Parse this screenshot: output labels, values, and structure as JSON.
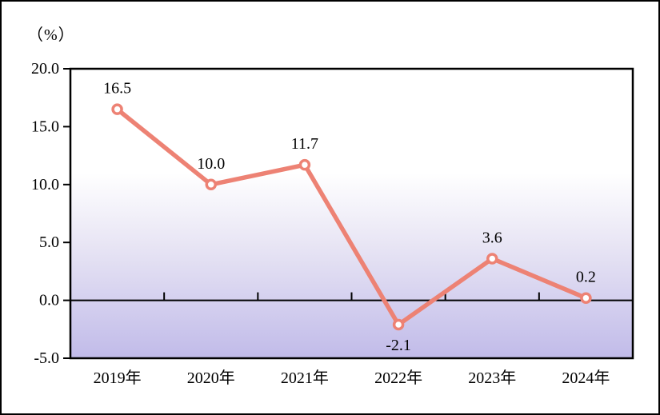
{
  "chart_data": {
    "type": "line",
    "title": "",
    "unit_label": "（%）",
    "categories": [
      "2019年",
      "2020年",
      "2021年",
      "2022年",
      "2023年",
      "2024年"
    ],
    "values": [
      16.5,
      10.0,
      11.7,
      -2.1,
      3.6,
      0.2
    ],
    "data_labels": [
      "16.5",
      "10.0",
      "11.7",
      "-2.1",
      "3.6",
      "0.2"
    ],
    "xlabel": "",
    "ylabel": "（%）",
    "ylim": [
      -5.0,
      20.0
    ],
    "ytick_step": 5.0,
    "yticks": [
      {
        "value": 20.0,
        "label": "20.0"
      },
      {
        "value": 15.0,
        "label": "15.0"
      },
      {
        "value": 10.0,
        "label": "10.0"
      },
      {
        "value": 5.0,
        "label": "5.0"
      },
      {
        "value": 0.0,
        "label": "0.0"
      },
      {
        "value": -5.0,
        "label": "-5.0"
      }
    ],
    "grid": false,
    "legend": "none",
    "colors": {
      "line": "#ED8274",
      "marker_fill": "#FFFFFF",
      "marker_stroke": "#ED8274",
      "axis": "#000000",
      "text": "#000000",
      "plot_bg_top": "#FFFFFF",
      "plot_bg_mid": "#E7E4F4",
      "plot_bg_bottom": "#C1BBE9",
      "page_bg": "#FFFFFF",
      "frame_border": "#000000"
    }
  }
}
